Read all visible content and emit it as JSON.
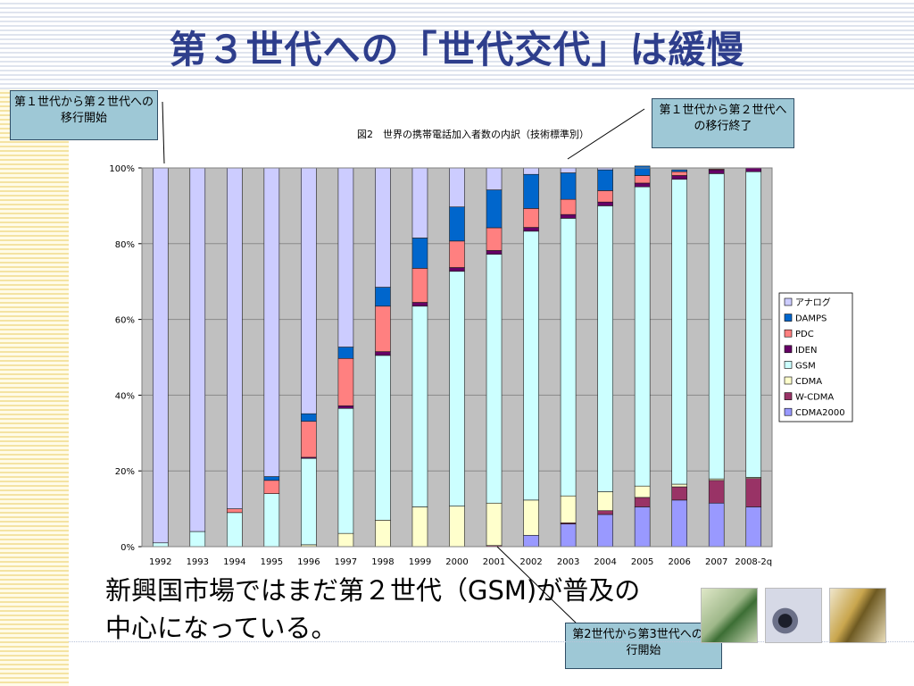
{
  "slide": {
    "title": "第３世代への「世代交代」は緩慢",
    "body_text": "新興国市場ではまだ第２世代（GSM)が普及の中心になっている。"
  },
  "callouts": {
    "top_left": "第１世代から第２世代への移行開始",
    "top_right": "第１世代から第２世代への移行終了",
    "bottom": "第2世代から第3世代への移行開始"
  },
  "images": [
    {
      "name": "checkmark-photo-green"
    },
    {
      "name": "disc-photo-blue"
    },
    {
      "name": "checkmark-photo-gold"
    }
  ],
  "chart_data": {
    "type": "bar",
    "stacked": "100%",
    "title": "図2　世界の携帯電話加入者数の内訳（技術標準別）",
    "xlabel": "",
    "ylabel": "",
    "ylim": [
      0,
      100
    ],
    "yticks": [
      "0%",
      "20%",
      "40%",
      "60%",
      "80%",
      "100%"
    ],
    "grid": true,
    "legend_position": "right",
    "categories": [
      "1992",
      "1993",
      "1994",
      "1995",
      "1996",
      "1997",
      "1998",
      "1999",
      "2000",
      "2001",
      "2002",
      "2003",
      "2004",
      "2005",
      "2006",
      "2007",
      "2008-2q"
    ],
    "series": [
      {
        "name": "CDMA2000",
        "color": "#9999ff",
        "values": [
          0,
          0,
          0,
          0,
          0,
          0,
          0,
          0,
          0,
          0,
          3,
          6,
          8.5,
          10.5,
          12.3,
          11.5,
          10.5
        ]
      },
      {
        "name": "W-CDMA",
        "color": "#993366",
        "values": [
          0,
          0,
          0,
          0,
          0,
          0,
          0,
          0,
          0,
          0.3,
          0,
          0.3,
          1,
          2.5,
          3.5,
          6,
          7.5
        ]
      },
      {
        "name": "CDMA",
        "color": "#ffffcc",
        "values": [
          0,
          0,
          0,
          0,
          0.5,
          3.5,
          7,
          10.5,
          10.7,
          11.2,
          9.3,
          7.1,
          5,
          3,
          0.7,
          0.4,
          0.3
        ]
      },
      {
        "name": "GSM",
        "color": "#ccffff",
        "values": [
          1,
          4,
          9,
          14,
          22.8,
          33,
          43.5,
          53,
          62,
          65.7,
          71,
          73.3,
          75.5,
          79,
          80.5,
          80.6,
          80.7
        ]
      },
      {
        "name": "IDEN",
        "color": "#660066",
        "values": [
          0,
          0,
          0,
          0,
          0.3,
          0.7,
          1,
          1,
          1,
          1,
          1,
          1,
          1,
          1,
          1,
          1,
          1
        ]
      },
      {
        "name": "PDC",
        "color": "#ff8080",
        "values": [
          0,
          0,
          1,
          3.5,
          9.5,
          12.5,
          12,
          9,
          7,
          6,
          5,
          4,
          3,
          2,
          1,
          0.2,
          0
        ]
      },
      {
        "name": "DAMPS",
        "color": "#0066cc",
        "values": [
          0,
          0,
          0,
          1,
          2,
          3,
          5,
          8,
          9,
          10,
          9,
          7,
          5.5,
          2.5,
          0.5,
          0,
          0
        ]
      },
      {
        "name": "アナログ",
        "color": "#ccccff",
        "values": [
          99,
          96,
          90,
          81.5,
          64.9,
          47.3,
          31.5,
          18.5,
          10.3,
          5.8,
          1.7,
          1.3,
          0.5,
          0,
          0,
          0,
          0
        ]
      }
    ]
  }
}
